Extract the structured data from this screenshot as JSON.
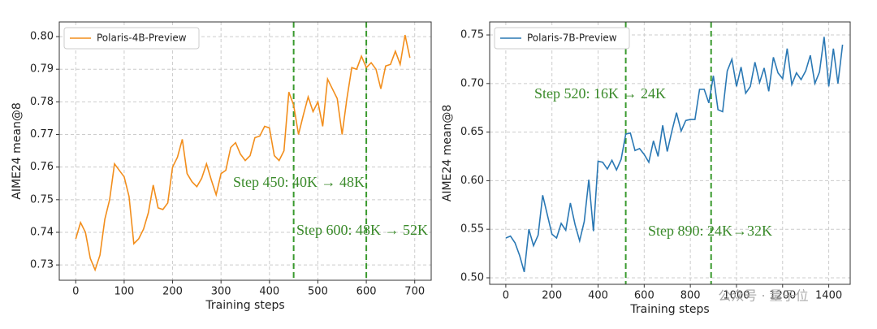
{
  "chart_data": [
    {
      "type": "line",
      "xlabel": "Training steps",
      "ylabel": "AIME24 mean@8",
      "x": [
        0,
        10,
        20,
        30,
        40,
        50,
        60,
        70,
        80,
        90,
        100,
        110,
        120,
        130,
        140,
        150,
        160,
        170,
        180,
        190,
        200,
        210,
        220,
        230,
        240,
        250,
        260,
        270,
        280,
        290,
        300,
        310,
        320,
        330,
        340,
        350,
        360,
        370,
        380,
        390,
        400,
        410,
        420,
        430,
        440,
        450,
        460,
        470,
        480,
        490,
        500,
        510,
        520,
        530,
        540,
        550,
        560,
        570,
        580,
        590,
        600,
        610,
        620,
        630,
        640,
        650,
        660,
        670,
        680,
        690
      ],
      "series": [
        {
          "name": "Polaris-4B-Preview",
          "color": "#f28e1c",
          "values": [
            0.738,
            0.743,
            0.74,
            0.732,
            0.7285,
            0.733,
            0.744,
            0.75,
            0.761,
            0.759,
            0.757,
            0.751,
            0.7365,
            0.738,
            0.741,
            0.746,
            0.7545,
            0.7475,
            0.747,
            0.749,
            0.76,
            0.763,
            0.7685,
            0.758,
            0.7555,
            0.754,
            0.7565,
            0.761,
            0.756,
            0.7515,
            0.758,
            0.759,
            0.766,
            0.7675,
            0.764,
            0.762,
            0.7635,
            0.769,
            0.7695,
            0.7725,
            0.772,
            0.7635,
            0.762,
            0.765,
            0.783,
            0.779,
            0.77,
            0.776,
            0.7815,
            0.777,
            0.78,
            0.7725,
            0.787,
            0.784,
            0.781,
            0.77,
            0.781,
            0.7905,
            0.79,
            0.794,
            0.7905,
            0.792,
            0.79,
            0.784,
            0.791,
            0.7915,
            0.7955,
            0.7915,
            0.8005,
            0.7935
          ]
        }
      ],
      "xlim": [
        -34,
        734
      ],
      "ylim": [
        0.7253,
        0.8045
      ],
      "xticks": [
        0,
        100,
        200,
        300,
        400,
        500,
        600,
        700
      ],
      "yticks": [
        0.73,
        0.74,
        0.75,
        0.76,
        0.77,
        0.78,
        0.79,
        {
          "value": 0.8,
          "label": "0.80"
        }
      ],
      "grid": true,
      "legend": "upper left",
      "vlines": [
        450,
        600
      ],
      "vline_color": "#3a9a2e",
      "annotations": [
        "Step 450: 40K → 48K",
        "Step 600: 48K → 52K"
      ]
    },
    {
      "type": "line",
      "xlabel": "Training steps",
      "ylabel": "AIME24 mean@8",
      "x": [
        0,
        20,
        40,
        60,
        80,
        100,
        120,
        140,
        160,
        180,
        200,
        220,
        240,
        260,
        280,
        300,
        320,
        340,
        360,
        380,
        400,
        420,
        440,
        460,
        480,
        500,
        520,
        540,
        560,
        580,
        600,
        620,
        640,
        660,
        680,
        700,
        720,
        740,
        760,
        780,
        800,
        820,
        840,
        860,
        880,
        900,
        920,
        940,
        960,
        980,
        1000,
        1020,
        1040,
        1060,
        1080,
        1100,
        1120,
        1140,
        1160,
        1180,
        1200,
        1220,
        1240,
        1260,
        1280,
        1300,
        1320,
        1340,
        1360,
        1380,
        1400,
        1420,
        1440,
        1460
      ],
      "series": [
        {
          "name": "Polaris-7B-Preview",
          "color": "#2a78b4",
          "values": [
            0.541,
            0.543,
            0.536,
            0.523,
            0.506,
            0.55,
            0.533,
            0.544,
            0.585,
            0.565,
            0.545,
            0.541,
            0.556,
            0.549,
            0.577,
            0.555,
            0.538,
            0.558,
            0.601,
            0.548,
            0.62,
            0.619,
            0.612,
            0.621,
            0.611,
            0.622,
            0.648,
            0.649,
            0.631,
            0.633,
            0.627,
            0.619,
            0.641,
            0.625,
            0.657,
            0.63,
            0.651,
            0.67,
            0.651,
            0.662,
            0.663,
            0.663,
            0.694,
            0.694,
            0.68,
            0.708,
            0.673,
            0.671,
            0.713,
            0.725,
            0.697,
            0.717,
            0.69,
            0.697,
            0.722,
            0.701,
            0.716,
            0.692,
            0.727,
            0.711,
            0.705,
            0.736,
            0.699,
            0.711,
            0.704,
            0.713,
            0.729,
            0.7,
            0.712,
            0.748,
            0.697,
            0.736,
            0.7,
            0.74
          ]
        }
      ],
      "xlim": [
        -70,
        1493
      ],
      "ylim": [
        0.4933,
        0.7634
      ],
      "xticks": [
        0,
        200,
        400,
        600,
        800,
        1000,
        1200,
        1400
      ],
      "yticks": [
        {
          "value": 0.5,
          "label": "0.50"
        },
        0.55,
        {
          "value": 0.6,
          "label": "0.60"
        },
        0.65,
        {
          "value": 0.7,
          "label": "0.70"
        },
        0.75
      ],
      "grid": true,
      "legend": "upper left",
      "vlines": [
        520,
        890
      ],
      "vline_color": "#3a9a2e",
      "annotations": [
        "Step 520: 16K → 24K",
        "Step 890: 24K→32K"
      ]
    }
  ],
  "watermark": "公众号 · 量子位"
}
